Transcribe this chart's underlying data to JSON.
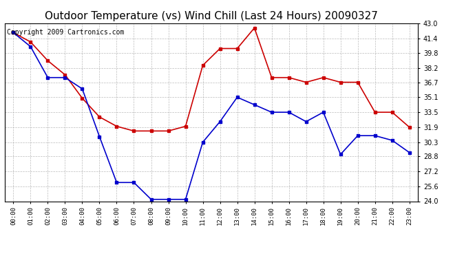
{
  "title": "Outdoor Temperature (vs) Wind Chill (Last 24 Hours) 20090327",
  "copyright": "Copyright 2009 Cartronics.com",
  "hours": [
    "00:00",
    "01:00",
    "02:00",
    "03:00",
    "04:00",
    "05:00",
    "06:00",
    "07:00",
    "08:00",
    "09:00",
    "10:00",
    "11:00",
    "12:00",
    "13:00",
    "14:00",
    "15:00",
    "16:00",
    "17:00",
    "18:00",
    "19:00",
    "20:00",
    "21:00",
    "22:00",
    "23:00"
  ],
  "temp": [
    42.0,
    40.5,
    37.2,
    37.2,
    36.0,
    30.9,
    26.0,
    26.0,
    24.2,
    24.2,
    24.2,
    30.3,
    32.5,
    35.1,
    34.3,
    33.5,
    33.5,
    32.5,
    33.5,
    29.0,
    31.0,
    31.0,
    30.5,
    29.2
  ],
  "wind_chill": [
    42.0,
    41.0,
    39.0,
    37.5,
    35.0,
    33.0,
    32.0,
    31.5,
    31.5,
    31.5,
    32.0,
    38.5,
    40.3,
    40.3,
    42.5,
    37.2,
    37.2,
    36.7,
    37.2,
    36.7,
    36.7,
    33.5,
    33.5,
    31.9
  ],
  "temp_color": "#0000cc",
  "wind_chill_color": "#cc0000",
  "ylim_min": 24.0,
  "ylim_max": 43.0,
  "yticks": [
    24.0,
    25.6,
    27.2,
    28.8,
    30.3,
    31.9,
    33.5,
    35.1,
    36.7,
    38.2,
    39.8,
    41.4,
    43.0
  ],
  "background_color": "#ffffff",
  "plot_background": "#ffffff",
  "grid_color": "#aaaaaa",
  "title_fontsize": 11,
  "copyright_fontsize": 7
}
